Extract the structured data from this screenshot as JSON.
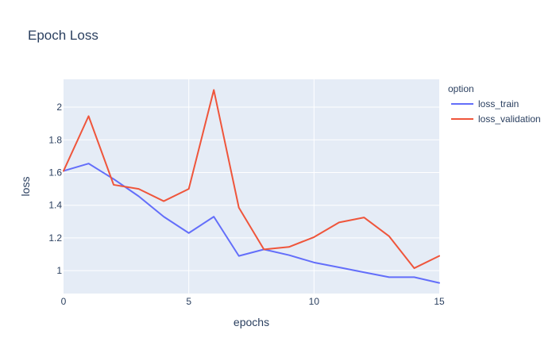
{
  "chart_data": {
    "type": "line",
    "title": "Epoch Loss",
    "xlabel": "epochs",
    "ylabel": "loss",
    "xlim": [
      0,
      15
    ],
    "ylim": [
      0.86,
      2.17
    ],
    "xticks": [
      0,
      5,
      10,
      15
    ],
    "xtick_labels": [
      "0",
      "5",
      "10",
      "15"
    ],
    "yticks": [
      1,
      1.2,
      1.4,
      1.6,
      1.8,
      2
    ],
    "ytick_labels": [
      "1",
      "1.2",
      "1.4",
      "1.6",
      "1.8",
      "2"
    ],
    "grid": true,
    "legend": {
      "title": "option",
      "placement": "right"
    },
    "x": [
      0,
      1,
      2,
      3,
      4,
      5,
      6,
      7,
      8,
      9,
      10,
      11,
      12,
      13,
      14,
      15
    ],
    "series": [
      {
        "name": "loss_train",
        "color": "#636efa",
        "values": [
          1.61,
          1.655,
          1.56,
          1.455,
          1.33,
          1.23,
          1.33,
          1.09,
          1.13,
          1.095,
          1.05,
          1.02,
          0.99,
          0.96,
          0.96,
          0.925
        ]
      },
      {
        "name": "loss_validation",
        "color": "#ef553b",
        "values": [
          1.61,
          1.945,
          1.525,
          1.5,
          1.425,
          1.5,
          2.105,
          1.385,
          1.13,
          1.145,
          1.205,
          1.295,
          1.325,
          1.21,
          1.015,
          1.09
        ]
      }
    ]
  },
  "colors": {
    "plot_background": "#e5ecf6",
    "gridline": "#ffffff",
    "text": "#2a3f5f"
  }
}
